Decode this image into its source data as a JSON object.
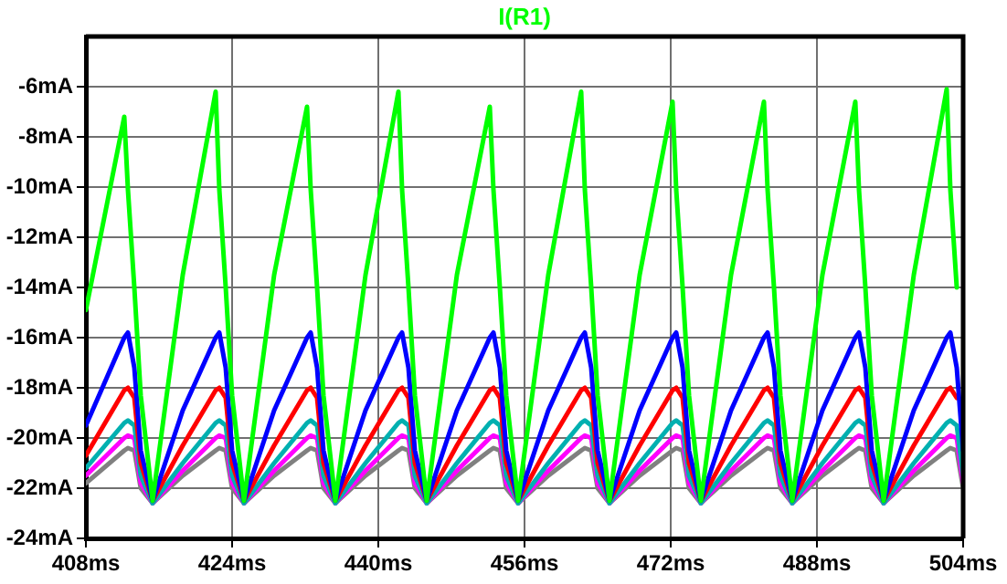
{
  "chart_data": {
    "type": "line",
    "title": "I(R1)",
    "x": [
      408,
      412.2,
      412.6,
      413.3,
      414,
      415.3,
      418.6,
      422.2,
      422.6,
      423.3,
      424,
      425.3,
      428.6,
      432.2,
      432.6,
      433.3,
      434,
      435.3,
      438.6,
      442.2,
      442.6,
      443.3,
      444,
      445.3,
      448.6,
      452.2,
      452.6,
      453.3,
      454,
      455.3,
      458.6,
      462.2,
      462.6,
      463.3,
      464,
      465.3,
      468.6,
      472.2,
      472.6,
      473.3,
      474,
      475.3,
      478.6,
      482.2,
      482.6,
      483.3,
      484,
      485.3,
      488.6,
      492.2,
      492.6,
      493.3,
      494,
      495.3,
      498.6,
      502.2,
      502.6,
      503.3,
      504
    ],
    "series": [
      {
        "color": "#00ff00",
        "values": [
          -14.9,
          -7.2,
          -10.1,
          -14,
          -18.3,
          -22.5,
          -13.5,
          -6.2,
          -10.1,
          -14,
          -18.3,
          -22.5,
          -13.5,
          -6.8,
          -10.1,
          -14,
          -18.3,
          -22.5,
          -13.5,
          -6.2,
          -10.1,
          -14,
          -18.3,
          -22.5,
          -13.5,
          -6.8,
          -10.1,
          -14,
          -18.3,
          -22.5,
          -13.5,
          -6.2,
          -10.1,
          -14,
          -18.3,
          -22.5,
          -13.5,
          -6.6,
          -10.1,
          -14,
          -18.3,
          -22.5,
          -13.5,
          -6.6,
          -10.1,
          -14,
          -18.3,
          -22.5,
          -13.5,
          -6.6,
          -10.1,
          -14,
          -18.3,
          -22.5,
          -13.5,
          -6.1,
          -10.1,
          -14,
          null
        ]
      },
      {
        "color": "#0000ff",
        "values": [
          -19.5,
          -16,
          -15.8,
          -17.2,
          -20.5,
          -22.5,
          -18.9,
          -16,
          -15.8,
          -17.2,
          -20.5,
          -22.5,
          -18.9,
          -16,
          -15.8,
          -17.2,
          -20.5,
          -22.5,
          -18.9,
          -16,
          -15.8,
          -17.2,
          -20.5,
          -22.5,
          -18.9,
          -16,
          -15.8,
          -17.2,
          -20.5,
          -22.5,
          -18.9,
          -16,
          -15.8,
          -17.2,
          -20.5,
          -22.5,
          -18.9,
          -16,
          -15.8,
          -17.2,
          -20.5,
          -22.5,
          -18.9,
          -16,
          -15.8,
          -17.2,
          -20.5,
          -22.5,
          -18.9,
          -16,
          -15.8,
          -17.2,
          -20.5,
          -22.5,
          -18.9,
          -16,
          -15.8,
          -17.2,
          -20.5
        ]
      },
      {
        "color": "#ff0000",
        "values": [
          -20.7,
          -18.1,
          -18,
          -18.4,
          -21,
          -22.5,
          -20.3,
          -18.1,
          -18,
          -18.4,
          -21,
          -22.5,
          -20.3,
          -18.1,
          -18,
          -18.4,
          -21,
          -22.5,
          -20.3,
          -18.1,
          -18,
          -18.4,
          -21,
          -22.5,
          -20.3,
          -18.1,
          -18,
          -18.4,
          -21,
          -22.5,
          -20.3,
          -18.1,
          -18,
          -18.4,
          -21,
          -22.5,
          -20.3,
          -18.1,
          -18,
          -18.4,
          -21,
          -22.5,
          -20.3,
          -18.1,
          -18,
          -18.4,
          -21,
          -22.5,
          -20.3,
          -18.1,
          -18,
          -18.4,
          -21,
          -22.5,
          -20.3,
          -18.1,
          -18,
          -18.4,
          null
        ]
      },
      {
        "color": "#00b0b0",
        "values": [
          -21.2,
          -19.4,
          -19.3,
          -19.5,
          -21.5,
          -22.6,
          -21,
          -19.4,
          -19.3,
          -19.5,
          -21.5,
          -22.6,
          -21,
          -19.4,
          -19.3,
          -19.5,
          -21.5,
          -22.6,
          -21,
          -19.4,
          -19.3,
          -19.5,
          -21.5,
          -22.6,
          -21,
          -19.4,
          -19.3,
          -19.5,
          -21.5,
          -22.6,
          -21,
          -19.4,
          -19.3,
          -19.5,
          -21.5,
          -22.6,
          -21,
          -19.4,
          -19.3,
          -19.5,
          -21.5,
          -22.6,
          -21,
          -19.4,
          -19.3,
          -19.5,
          -21.5,
          -22.6,
          -21,
          -19.4,
          -19.3,
          -19.5,
          -21.5,
          -22.6,
          -21,
          -19.4,
          -19.3,
          -19.5,
          -21.5
        ]
      },
      {
        "color": "#ff00ff",
        "values": [
          -21.5,
          -20,
          -19.9,
          -20,
          -21.8,
          -22.6,
          -21.3,
          -20,
          -19.9,
          -20,
          -21.8,
          -22.6,
          -21.3,
          -20,
          -19.9,
          -20,
          -21.8,
          -22.6,
          -21.3,
          -20,
          -19.9,
          -20,
          -21.8,
          -22.6,
          -21.3,
          -20,
          -19.9,
          -20,
          -21.8,
          -22.6,
          -21.3,
          -20,
          -19.9,
          -20,
          -21.8,
          -22.6,
          -21.3,
          -20,
          -19.9,
          -20,
          -21.8,
          -22.6,
          -21.3,
          -20,
          -19.9,
          -20,
          -21.8,
          -22.6,
          -21.3,
          -20,
          -19.9,
          -20,
          -21.8,
          -22.6,
          -21.3,
          -20,
          -19.9,
          -20,
          -21.8
        ]
      },
      {
        "color": "#808080",
        "values": [
          -21.8,
          -20.5,
          -20.4,
          -20.5,
          -22,
          -22.6,
          -21.5,
          -20.5,
          -20.4,
          -20.5,
          -22,
          -22.6,
          -21.5,
          -20.5,
          -20.4,
          -20.5,
          -22,
          -22.6,
          -21.5,
          -20.5,
          -20.4,
          -20.5,
          -22,
          -22.6,
          -21.5,
          -20.5,
          -20.4,
          -20.5,
          -22,
          -22.6,
          -21.5,
          -20.5,
          -20.4,
          -20.5,
          -22,
          -22.6,
          -21.5,
          -20.5,
          -20.4,
          -20.5,
          -22,
          -22.6,
          -21.5,
          -20.5,
          -20.4,
          -20.5,
          -22,
          -22.6,
          -21.5,
          -20.5,
          -20.4,
          -20.5,
          -22,
          -22.6,
          -21.5,
          -20.5,
          -20.4,
          -20.5,
          -22
        ]
      }
    ],
    "xlim": [
      408,
      504
    ],
    "xticks": [
      {
        "value": 408,
        "label": "408ms"
      },
      {
        "value": 424,
        "label": "424ms"
      },
      {
        "value": 440,
        "label": "440ms"
      },
      {
        "value": 456,
        "label": "456ms"
      },
      {
        "value": 472,
        "label": "472ms"
      },
      {
        "value": 488,
        "label": "488ms"
      },
      {
        "value": 504,
        "label": "504ms"
      }
    ],
    "ylim": [
      -24,
      -4
    ],
    "yticks": [
      {
        "value": -24,
        "label": "-24mA"
      },
      {
        "value": -22,
        "label": "-22mA"
      },
      {
        "value": -20,
        "label": "-20mA"
      },
      {
        "value": -18,
        "label": "-18mA"
      },
      {
        "value": -16,
        "label": "-16mA"
      },
      {
        "value": -14,
        "label": "-14mA"
      },
      {
        "value": -12,
        "label": "-12mA"
      },
      {
        "value": -10,
        "label": "-10mA"
      },
      {
        "value": -8,
        "label": "-8mA"
      },
      {
        "value": -6,
        "label": "-6mA"
      }
    ],
    "grid": true,
    "legend": false,
    "marker": "none",
    "line_style": "solid"
  }
}
